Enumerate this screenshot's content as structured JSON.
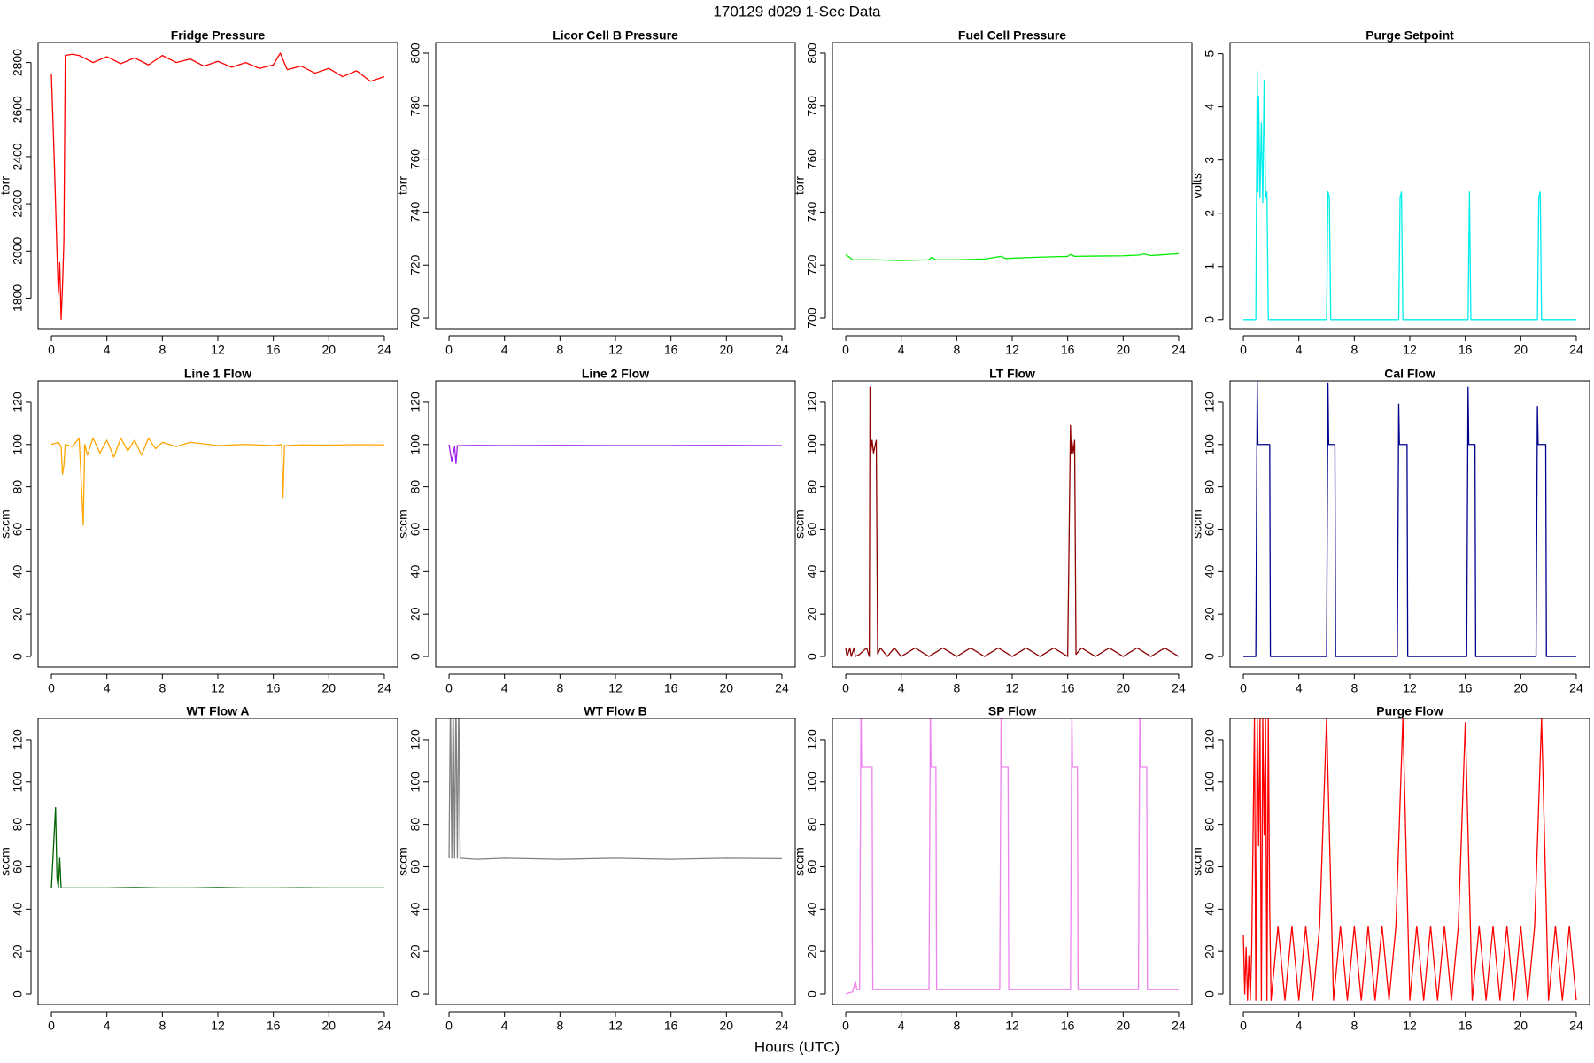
{
  "title": "170129   d029   1-Sec Data",
  "xlabel": "Hours (UTC)",
  "chart_data": [
    {
      "type": "line",
      "title": "Fridge Pressure",
      "ylabel": "torr",
      "xlim": [
        -0.96,
        24.96
      ],
      "xticks": [
        0,
        4,
        8,
        12,
        16,
        20,
        24
      ],
      "ylim": [
        1670,
        2885
      ],
      "yticks": [
        1800,
        2000,
        2200,
        2400,
        2600,
        2800
      ],
      "series": [
        {
          "color": "#ff0000",
          "x": [
            0,
            0.2,
            0.4,
            0.5,
            0.6,
            0.7,
            0.8,
            0.9,
            1,
            1.5,
            2,
            3,
            4,
            5,
            6,
            7,
            8,
            9,
            10,
            11,
            12,
            13,
            14,
            15,
            16,
            16.5,
            17,
            18,
            19,
            20,
            21,
            22,
            23,
            24
          ],
          "values": [
            2750,
            2400,
            2000,
            1820,
            1950,
            1710,
            1850,
            2040,
            2830,
            2835,
            2830,
            2800,
            2825,
            2795,
            2820,
            2790,
            2830,
            2800,
            2815,
            2785,
            2805,
            2780,
            2800,
            2775,
            2790,
            2840,
            2770,
            2785,
            2755,
            2775,
            2740,
            2765,
            2720,
            2740
          ]
        }
      ]
    },
    {
      "type": "line",
      "title": "Licor Cell B Pressure",
      "ylabel": "torr",
      "xlim": [
        -0.96,
        24.96
      ],
      "xticks": [
        0,
        4,
        8,
        12,
        16,
        20,
        24
      ],
      "ylim": [
        696,
        804
      ],
      "yticks": [
        700,
        720,
        740,
        760,
        780,
        800
      ],
      "series": []
    },
    {
      "type": "line",
      "title": "Fuel Cell Pressure",
      "ylabel": "torr",
      "xlim": [
        -0.96,
        24.96
      ],
      "xticks": [
        0,
        4,
        8,
        12,
        16,
        20,
        24
      ],
      "ylim": [
        696,
        804
      ],
      "yticks": [
        700,
        720,
        740,
        760,
        780,
        800
      ],
      "series": [
        {
          "color": "#00ee00",
          "x": [
            0,
            0.5,
            1,
            2,
            4,
            6,
            6.2,
            6.5,
            8,
            10,
            11.2,
            11.5,
            12,
            14,
            16,
            16.2,
            16.5,
            18,
            20,
            21.2,
            21.5,
            22,
            24
          ],
          "values": [
            724,
            722,
            722,
            722,
            721.7,
            722,
            723,
            722,
            722,
            722.3,
            723.3,
            722.5,
            722.6,
            723,
            723.3,
            724,
            723.3,
            723.4,
            723.5,
            723.8,
            724.2,
            723.6,
            724.3
          ]
        }
      ]
    },
    {
      "type": "line",
      "title": "Purge Setpoint",
      "ylabel": "volts",
      "xlim": [
        -0.96,
        24.96
      ],
      "xticks": [
        0,
        4,
        8,
        12,
        16,
        20,
        24
      ],
      "ylim": [
        -0.17,
        5.21
      ],
      "yticks": [
        0,
        1,
        2,
        3,
        4,
        5
      ],
      "series": [
        {
          "color": "#00eeee",
          "x": [
            0,
            0.9,
            1.0,
            1.05,
            1.1,
            1.2,
            1.3,
            1.4,
            1.5,
            1.6,
            1.7,
            1.8,
            6,
            6.1,
            6.2,
            6.3,
            11.2,
            11.3,
            11.4,
            11.5,
            16.2,
            16.3,
            16.4,
            21.2,
            21.3,
            21.4,
            21.5,
            24
          ],
          "values": [
            0,
            0,
            4.67,
            2.4,
            4.2,
            2.3,
            3.7,
            2.2,
            4.5,
            2.3,
            2.4,
            0,
            0,
            2.4,
            2.3,
            0,
            0,
            2.3,
            2.4,
            0,
            0,
            2.4,
            0,
            0,
            2.3,
            2.4,
            0,
            0
          ]
        }
      ]
    },
    {
      "type": "line",
      "title": "Line 1 Flow",
      "ylabel": "sccm",
      "xlim": [
        -0.96,
        24.96
      ],
      "xticks": [
        0,
        4,
        8,
        12,
        16,
        20,
        24
      ],
      "ylim": [
        -5,
        130
      ],
      "yticks": [
        0,
        20,
        40,
        60,
        80,
        100,
        120
      ],
      "series": [
        {
          "color": "#ffa500",
          "x": [
            0,
            0.5,
            0.7,
            0.8,
            0.9,
            1,
            1.5,
            2,
            2.3,
            2.4,
            2.6,
            3,
            3.5,
            4,
            4.5,
            5,
            5.5,
            6,
            6.5,
            7,
            7.5,
            8,
            9,
            10,
            12,
            14,
            16,
            16.6,
            16.7,
            16.8,
            18,
            20,
            22,
            24
          ],
          "values": [
            100,
            101,
            99,
            86,
            90,
            100,
            99,
            103,
            62,
            100,
            95,
            103,
            96,
            102,
            94,
            103,
            97,
            102,
            95,
            103,
            98,
            101,
            99,
            101,
            99.5,
            100,
            99.5,
            100,
            75,
            99.5,
            99.8,
            99.7,
            99.9,
            99.8
          ]
        }
      ]
    },
    {
      "type": "line",
      "title": "Line 2 Flow",
      "ylabel": "sccm",
      "xlim": [
        -0.96,
        24.96
      ],
      "xticks": [
        0,
        4,
        8,
        12,
        16,
        20,
        24
      ],
      "ylim": [
        -5,
        130
      ],
      "yticks": [
        0,
        20,
        40,
        60,
        80,
        100,
        120
      ],
      "series": [
        {
          "color": "#a020f0",
          "x": [
            0,
            0.2,
            0.4,
            0.5,
            0.6,
            0.7,
            2,
            4,
            8,
            12,
            16,
            20,
            24
          ],
          "values": [
            100,
            92,
            99,
            91,
            99.5,
            99.5,
            99.6,
            99.5,
            99.6,
            99.5,
            99.5,
            99.6,
            99.5
          ]
        }
      ]
    },
    {
      "type": "line",
      "title": "LT Flow",
      "ylabel": "sccm",
      "xlim": [
        -0.96,
        24.96
      ],
      "xticks": [
        0,
        4,
        8,
        12,
        16,
        20,
        24
      ],
      "ylim": [
        -5,
        130
      ],
      "yticks": [
        0,
        20,
        40,
        60,
        80,
        100,
        120
      ],
      "series": [
        {
          "color": "#8b0000",
          "x": [
            0,
            0.1,
            0.3,
            0.4,
            0.6,
            0.7,
            1,
            1.5,
            1.7,
            1.75,
            1.8,
            1.9,
            2.0,
            2.2,
            2.3,
            2.5,
            3,
            3.5,
            4,
            5,
            6,
            7,
            8,
            9,
            10,
            11,
            12,
            13,
            14,
            15,
            16,
            16.2,
            16.25,
            16.3,
            16.4,
            16.5,
            16.6,
            17,
            18,
            19,
            20,
            21,
            22,
            23,
            24
          ],
          "values": [
            4,
            0,
            4,
            0,
            4,
            0,
            1,
            4,
            0,
            127,
            96,
            102,
            96,
            102,
            1,
            4,
            0,
            4,
            0,
            4,
            0,
            4,
            0,
            4,
            0,
            4,
            0,
            4,
            0,
            4,
            0,
            109,
            96,
            102,
            96,
            102,
            1,
            4,
            0,
            4,
            0,
            4,
            0,
            4,
            0
          ]
        }
      ]
    },
    {
      "type": "line",
      "title": "Cal Flow",
      "ylabel": "sccm",
      "xlim": [
        -0.96,
        24.96
      ],
      "xticks": [
        0,
        4,
        8,
        12,
        16,
        20,
        24
      ],
      "ylim": [
        -5,
        130
      ],
      "yticks": [
        0,
        20,
        40,
        60,
        80,
        100,
        120
      ],
      "series": [
        {
          "color": "#00008b",
          "x": [
            0,
            0.9,
            1.0,
            1.05,
            1.9,
            1.95,
            6.0,
            6.1,
            6.15,
            6.6,
            6.65,
            11.1,
            11.2,
            11.25,
            11.8,
            11.85,
            16.1,
            16.2,
            16.25,
            16.7,
            16.75,
            21.1,
            21.2,
            21.25,
            21.8,
            21.85,
            24
          ],
          "values": [
            0,
            0,
            130,
            100,
            100,
            0,
            0,
            129,
            100,
            100,
            0,
            0,
            119,
            100,
            100,
            0,
            0,
            127,
            100,
            100,
            0,
            0,
            118,
            100,
            100,
            0,
            0
          ]
        }
      ]
    },
    {
      "type": "line",
      "title": "WT Flow A",
      "ylabel": "sccm",
      "xlim": [
        -0.96,
        24.96
      ],
      "xticks": [
        0,
        4,
        8,
        12,
        16,
        20,
        24
      ],
      "ylim": [
        -5,
        130
      ],
      "yticks": [
        0,
        20,
        40,
        60,
        80,
        100,
        120
      ],
      "series": [
        {
          "color": "#006400",
          "x": [
            0,
            0.3,
            0.4,
            0.5,
            0.6,
            0.7,
            0.8,
            2,
            4,
            6,
            8,
            10,
            12,
            14,
            16,
            18,
            20,
            22,
            24
          ],
          "values": [
            50,
            88,
            55,
            50,
            64,
            50,
            50,
            50,
            50,
            50.2,
            50,
            50,
            50.2,
            50,
            50,
            50.1,
            50,
            50,
            50
          ]
        }
      ]
    },
    {
      "type": "line",
      "title": "WT Flow B",
      "ylabel": "sccm",
      "xlim": [
        -0.96,
        24.96
      ],
      "xticks": [
        0,
        4,
        8,
        12,
        16,
        20,
        24
      ],
      "ylim": [
        -5,
        130
      ],
      "yticks": [
        0,
        20,
        40,
        60,
        80,
        100,
        120
      ],
      "series": [
        {
          "color": "#808080",
          "x": [
            0,
            0.1,
            0.2,
            0.3,
            0.4,
            0.5,
            0.6,
            0.7,
            0.8,
            2,
            4,
            8,
            12,
            16,
            20,
            24
          ],
          "values": [
            64,
            140,
            64,
            140,
            64,
            140,
            64,
            140,
            64,
            63.5,
            64,
            63.5,
            64,
            63.5,
            64,
            63.8
          ]
        }
      ]
    },
    {
      "type": "line",
      "title": "SP Flow",
      "ylabel": "sccm",
      "xlim": [
        -0.96,
        24.96
      ],
      "xticks": [
        0,
        4,
        8,
        12,
        16,
        20,
        24
      ],
      "ylim": [
        -5,
        130
      ],
      "yticks": [
        0,
        20,
        40,
        60,
        80,
        100,
        120
      ],
      "series": [
        {
          "color": "#ee82ee",
          "x": [
            0,
            0.5,
            0.7,
            0.8,
            1.0,
            1.1,
            1.15,
            1.3,
            1.9,
            1.95,
            2.0,
            6.0,
            6.1,
            6.15,
            6.5,
            6.55,
            11.1,
            11.2,
            11.25,
            11.7,
            11.75,
            16.2,
            16.3,
            16.35,
            16.7,
            16.75,
            21.1,
            21.2,
            21.25,
            21.7,
            21.75,
            24
          ],
          "values": [
            0,
            1,
            6,
            2,
            2,
            135,
            107,
            107,
            107,
            2,
            2,
            2,
            135,
            107,
            107,
            2,
            2,
            135,
            107,
            107,
            2,
            2,
            135,
            107,
            107,
            2,
            2,
            135,
            107,
            107,
            2,
            2
          ]
        }
      ]
    },
    {
      "type": "line",
      "title": "Purge Flow",
      "ylabel": "sccm",
      "xlim": [
        -0.96,
        24.96
      ],
      "xticks": [
        0,
        4,
        8,
        12,
        16,
        20,
        24
      ],
      "ylim": [
        -5,
        130
      ],
      "yticks": [
        0,
        20,
        40,
        60,
        80,
        100,
        120
      ],
      "series": [
        {
          "color": "#ff0000",
          "x": [
            0,
            0.1,
            0.2,
            0.3,
            0.4,
            0.5,
            0.6,
            0.8,
            0.9,
            1.0,
            1.1,
            1.2,
            1.3,
            1.4,
            1.5,
            1.6,
            1.7,
            1.8,
            1.9,
            2.0,
            2.5,
            3,
            3.5,
            4,
            4.5,
            5,
            5.5,
            6,
            6.5,
            7,
            7.5,
            8,
            8.5,
            9,
            9.5,
            10,
            10.5,
            11,
            11.5,
            12,
            12.5,
            13,
            13.5,
            14,
            14.5,
            15,
            15.5,
            16,
            16.5,
            17,
            17.5,
            18,
            18.5,
            19,
            19.5,
            20,
            20.5,
            21,
            21.5,
            22,
            22.5,
            23,
            23.5,
            24
          ],
          "values": [
            28,
            0,
            22,
            -3,
            18,
            -3,
            20,
            130,
            -3,
            130,
            70,
            130,
            -3,
            130,
            75,
            130,
            -3,
            130,
            40,
            -3,
            32,
            -3,
            32,
            -3,
            32,
            -3,
            32,
            130,
            -3,
            32,
            -3,
            32,
            -3,
            32,
            -3,
            32,
            -3,
            32,
            130,
            -3,
            32,
            -3,
            32,
            -3,
            32,
            -3,
            32,
            128,
            -3,
            32,
            -3,
            32,
            -3,
            32,
            -3,
            32,
            -3,
            32,
            130,
            -3,
            32,
            -3,
            32,
            -3
          ]
        }
      ]
    }
  ]
}
